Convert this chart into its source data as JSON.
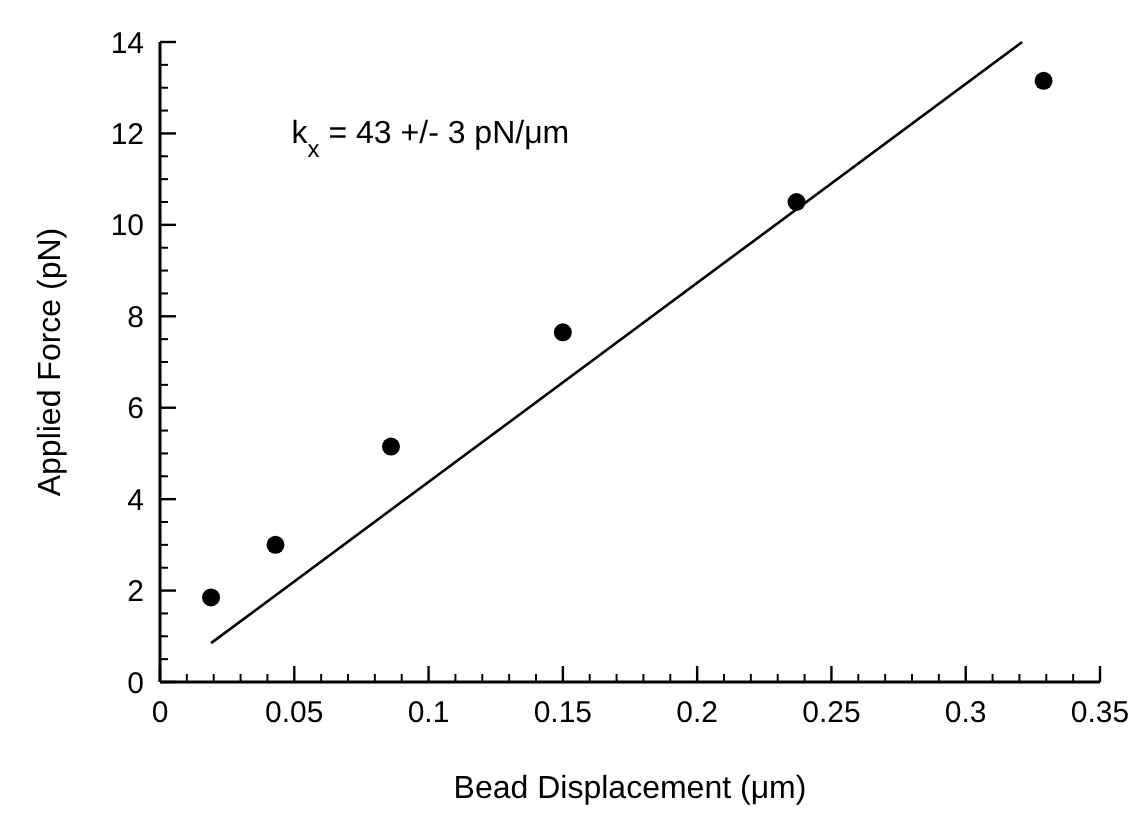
{
  "chart_data": {
    "type": "scatter",
    "xlabel": "Bead Displacement (μm)",
    "ylabel": "Applied Force (pN)",
    "xlim": [
      0,
      0.35
    ],
    "ylim": [
      0,
      14
    ],
    "xticks": [
      0,
      0.05,
      0.1,
      0.15,
      0.2,
      0.25,
      0.3,
      0.35
    ],
    "yticks": [
      0,
      2,
      4,
      6,
      8,
      10,
      12,
      14
    ],
    "marker": "circle",
    "grid": false,
    "annotations": [
      "k$_{x}$ = 43 +/- 3 pN/μm"
    ],
    "series": [
      {
        "color": "#000000",
        "x": [
          0.019,
          0.043,
          0.086,
          0.15,
          0.237,
          0.329
        ],
        "values": [
          1.85,
          3.0,
          5.15,
          7.65,
          10.5,
          13.15
        ]
      },
      {
        "type": "line",
        "color": "#000000",
        "line_style": "solid",
        "marker": "none",
        "x": [
          0.019,
          0.321
        ],
        "values": [
          0.85,
          14.0
        ]
      }
    ]
  }
}
